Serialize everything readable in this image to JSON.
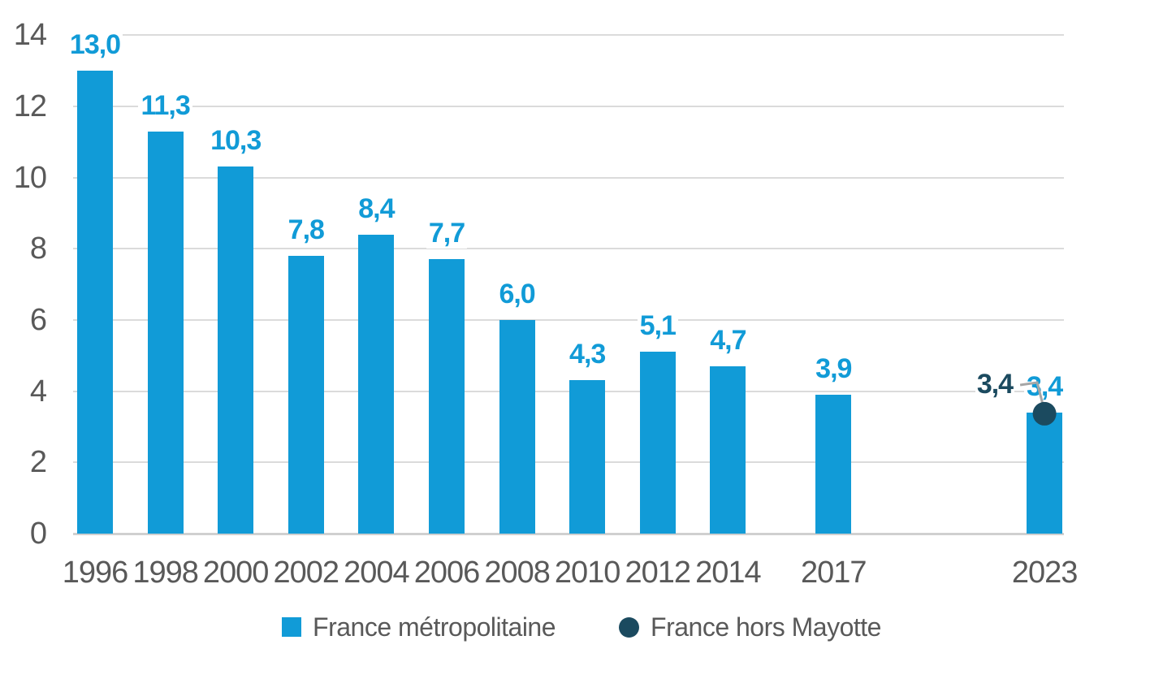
{
  "chart_data": {
    "type": "bar",
    "title": "",
    "x": [
      1996,
      1998,
      2000,
      2002,
      2004,
      2006,
      2008,
      2010,
      2012,
      2014,
      2017,
      2023
    ],
    "series": [
      {
        "name": "France métropolitaine",
        "type": "bar",
        "color": "#119BD7",
        "values": [
          13.0,
          11.3,
          10.3,
          7.8,
          8.4,
          7.7,
          6.0,
          4.3,
          5.1,
          4.7,
          3.9,
          3.4
        ],
        "value_labels": [
          "13,0",
          "11,3",
          "10,3",
          "7,8",
          "8,4",
          "7,7",
          "6,0",
          "4,3",
          "5,1",
          "4,7",
          "3,9",
          "3,4"
        ]
      },
      {
        "name": "France hors Mayotte",
        "type": "point",
        "color": "#1B4A5F",
        "points": [
          {
            "year": 2023,
            "value": 3.4,
            "label": "3,4"
          }
        ]
      }
    ],
    "ylim": [
      0,
      14
    ],
    "yticks": [
      0,
      2,
      4,
      6,
      8,
      10,
      12,
      14
    ],
    "grid": true,
    "legend_position": "bottom"
  },
  "legend": {
    "items": [
      {
        "label": "France métropolitaine",
        "swatch": "square",
        "color": "#119BD7"
      },
      {
        "label": "France hors Mayotte",
        "swatch": "circle",
        "color": "#1B4A5F"
      }
    ]
  },
  "colors": {
    "bar": "#119BD7",
    "point": "#1B4A5F",
    "axis_text": "#595959",
    "gridline": "#DBDBDB",
    "baseline": "#D0D0D0",
    "leader_line": "#A6A6A6",
    "background": "#FFFFFF"
  }
}
